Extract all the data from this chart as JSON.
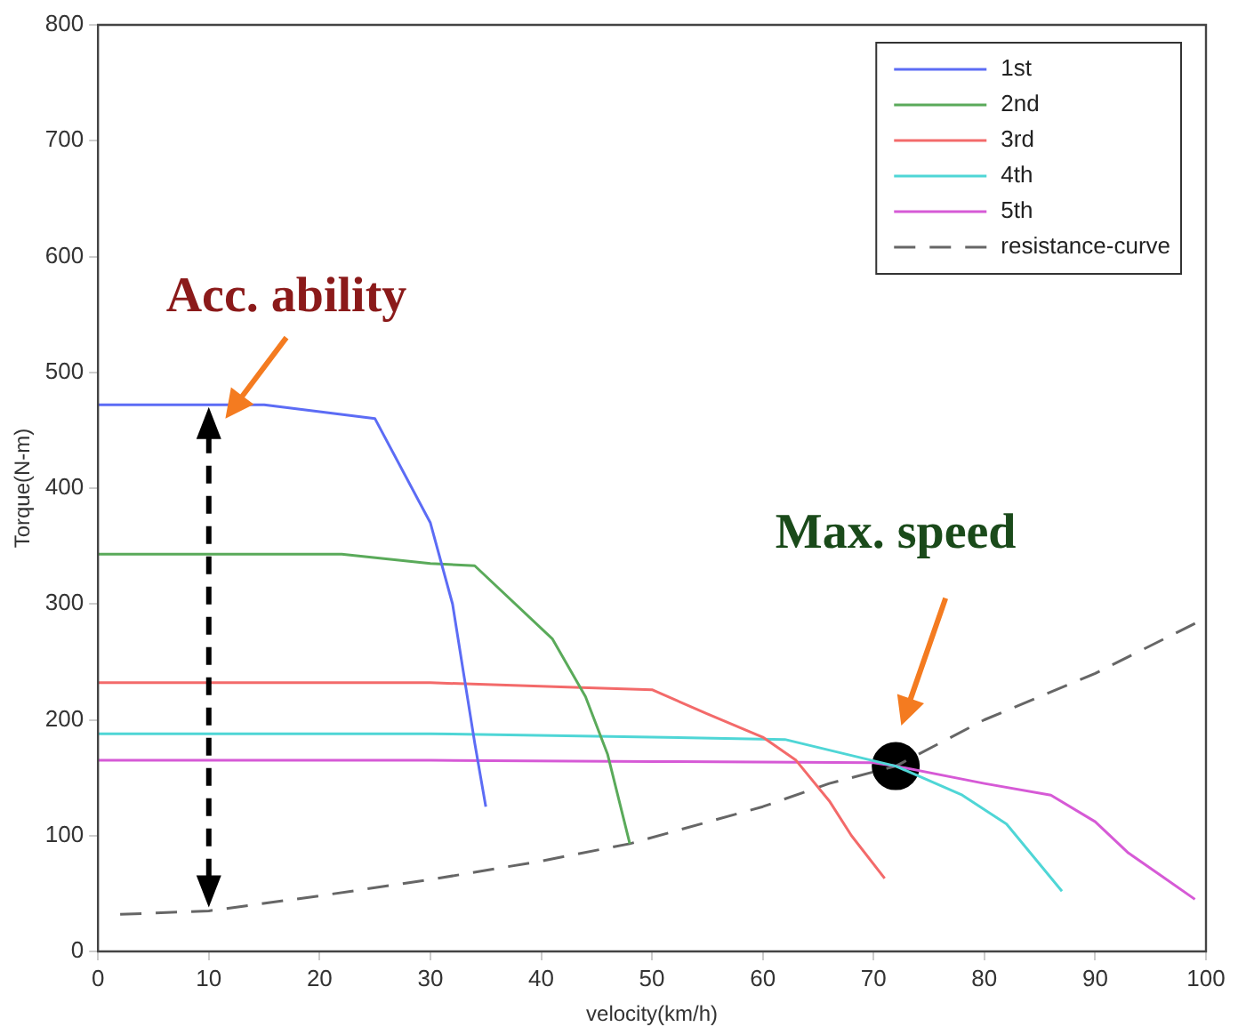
{
  "chart_data": {
    "type": "line",
    "xlabel": "velocity(km/h)",
    "ylabel": "Torque(N-m)",
    "xlim": [
      0,
      100
    ],
    "xticks": [
      0,
      10,
      20,
      30,
      40,
      50,
      60,
      70,
      80,
      90,
      100
    ],
    "ylim": [
      0,
      800
    ],
    "yticks": [
      0,
      100,
      200,
      300,
      400,
      500,
      600,
      700,
      800
    ],
    "grid": false,
    "legend": "top right",
    "marker": "none",
    "series": [
      {
        "name": "1st",
        "color": "#5c6cf5",
        "x": [
          0,
          15,
          25,
          30,
          32,
          33,
          34,
          35
        ],
        "values": [
          472,
          472,
          460,
          370,
          300,
          240,
          180,
          125
        ]
      },
      {
        "name": "2nd",
        "color": "#5aaa5a",
        "x": [
          0,
          22,
          30,
          34,
          41,
          44,
          46,
          48
        ],
        "values": [
          343,
          343,
          335,
          333,
          270,
          220,
          170,
          93
        ]
      },
      {
        "name": "3rd",
        "color": "#f36a6a",
        "x": [
          0,
          30,
          43,
          50,
          55,
          60,
          63,
          66,
          68,
          71
        ],
        "values": [
          232,
          232,
          228,
          226,
          205,
          185,
          165,
          130,
          100,
          63
        ]
      },
      {
        "name": "4th",
        "color": "#4fd6d6",
        "x": [
          0,
          30,
          50,
          62,
          72,
          78,
          82,
          87
        ],
        "values": [
          188,
          188,
          185,
          183,
          160,
          135,
          110,
          52
        ]
      },
      {
        "name": "5th",
        "color": "#d65ad6",
        "x": [
          0,
          30,
          50,
          70,
          72,
          80,
          86,
          90,
          93,
          96,
          99
        ],
        "values": [
          165,
          165,
          164,
          163,
          160,
          145,
          135,
          112,
          85,
          65,
          45
        ]
      },
      {
        "name": "resistance-curve",
        "color": "#666666",
        "line_style": "dashed",
        "x": [
          2,
          10,
          20,
          30,
          40,
          48,
          60,
          66,
          72,
          80,
          90,
          100
        ],
        "values": [
          32,
          35,
          48,
          62,
          78,
          93,
          125,
          145,
          160,
          200,
          240,
          288
        ]
      },
      {
        "type": "scatter",
        "marker": "circle",
        "color": "#000000",
        "x": [
          72
        ],
        "values": [
          160
        ]
      }
    ],
    "annotations": [
      "Acc. ability",
      "Max. speed"
    ]
  }
}
